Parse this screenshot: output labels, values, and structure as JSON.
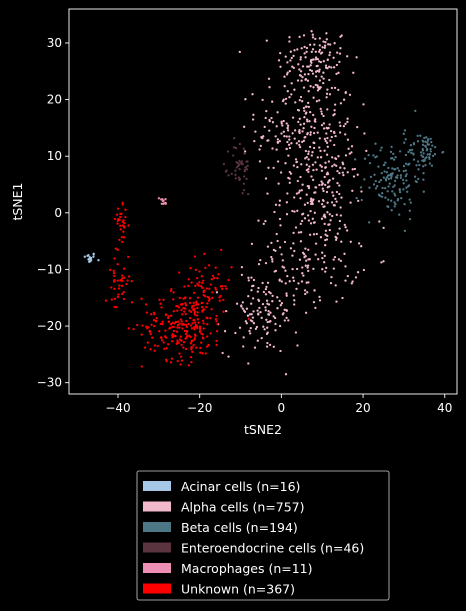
{
  "chart_data": {
    "type": "scatter",
    "title": "",
    "xlabel": "tSNE2",
    "ylabel": "tSNE1",
    "xlim": [
      -52,
      43
    ],
    "ylim": [
      -32,
      36
    ],
    "xticks": [
      -40,
      -20,
      0,
      20,
      40
    ],
    "yticks": [
      -30,
      -20,
      -10,
      0,
      10,
      20,
      30
    ],
    "grid": false,
    "background": "#000000",
    "legend_position": "below",
    "series": [
      {
        "name": "Acinar cells (n=16)",
        "color": "#a6c8e6",
        "n": 16,
        "clusters": [
          {
            "cx": -47,
            "cy": -8,
            "sx": 0.8,
            "sy": 0.5,
            "n": 16
          }
        ]
      },
      {
        "name": "Alpha cells (n=757)",
        "color": "#f2b8cc",
        "n": 757,
        "clusters": [
          {
            "cx": 8,
            "cy": 27,
            "sx": 4.5,
            "sy": 3,
            "n": 120
          },
          {
            "cx": 6,
            "cy": 15,
            "sx": 6,
            "sy": 5,
            "n": 240
          },
          {
            "cx": 10,
            "cy": 3,
            "sx": 5,
            "sy": 4,
            "n": 150
          },
          {
            "cx": 7,
            "cy": -8,
            "sx": 6,
            "sy": 4,
            "n": 130
          },
          {
            "cx": -5,
            "cy": -18,
            "sx": 4.5,
            "sy": 3.5,
            "n": 117
          }
        ]
      },
      {
        "name": "Beta cells (n=194)",
        "color": "#4e7785",
        "n": 194,
        "clusters": [
          {
            "cx": 27,
            "cy": 6,
            "sx": 3.5,
            "sy": 3.5,
            "n": 130
          },
          {
            "cx": 35,
            "cy": 11,
            "sx": 2,
            "sy": 1.5,
            "n": 64
          }
        ]
      },
      {
        "name": "Enteroendocrine cells (n=46)",
        "color": "#5a3540",
        "n": 46,
        "clusters": [
          {
            "cx": -10,
            "cy": 8,
            "sx": 1.3,
            "sy": 2.5,
            "n": 46
          }
        ]
      },
      {
        "name": "Macrophages (n=11)",
        "color": "#ee8fb5",
        "n": 11,
        "clusters": [
          {
            "cx": -29,
            "cy": 2,
            "sx": 0.5,
            "sy": 0.5,
            "n": 11
          }
        ]
      },
      {
        "name": "Unknown (n=367)",
        "color": "#ff0000",
        "n": 367,
        "clusters": [
          {
            "cx": -24,
            "cy": -20,
            "sx": 5,
            "sy": 3,
            "n": 230
          },
          {
            "cx": -18,
            "cy": -13,
            "sx": 3,
            "sy": 2.5,
            "n": 70
          },
          {
            "cx": -40,
            "cy": -12,
            "sx": 1.5,
            "sy": 3,
            "n": 40
          },
          {
            "cx": -39,
            "cy": -2,
            "sx": 0.8,
            "sy": 1.5,
            "n": 27
          }
        ]
      }
    ]
  }
}
